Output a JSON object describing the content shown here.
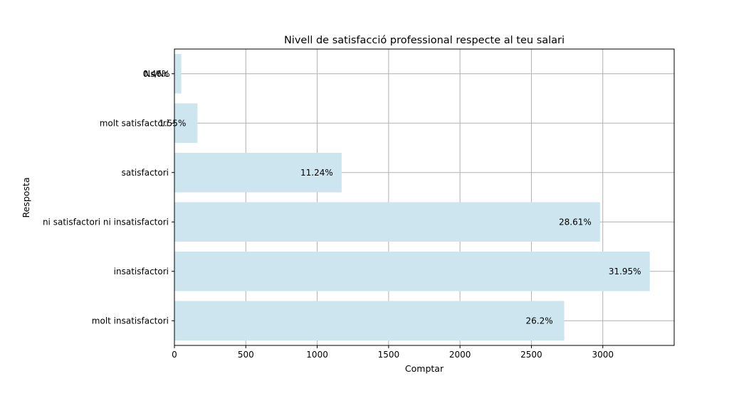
{
  "chart_data": {
    "type": "bar",
    "orientation": "horizontal",
    "title": "Nivell de satisfacció professional respecte al teu salari",
    "xlabel": "Comptar",
    "ylabel": "Resposta",
    "categories": [
      "molt insatisfactori",
      "insatisfactori",
      "ni satisfactori ni insatisfactori",
      "satisfactori",
      "molt satisfactori",
      "Ns/Nc"
    ],
    "values": [
      2730,
      3329,
      2981,
      1171,
      161,
      48
    ],
    "data_labels": [
      "26.2%",
      "31.95%",
      "28.61%",
      "11.24%",
      "1.55%",
      "0.46%"
    ],
    "xlim": [
      0,
      3500
    ],
    "xticks": [
      0,
      500,
      1000,
      1500,
      2000,
      2500,
      3000
    ],
    "grid": true,
    "bar_color": "#cce5ef",
    "grid_color": "#b0b0b0"
  }
}
